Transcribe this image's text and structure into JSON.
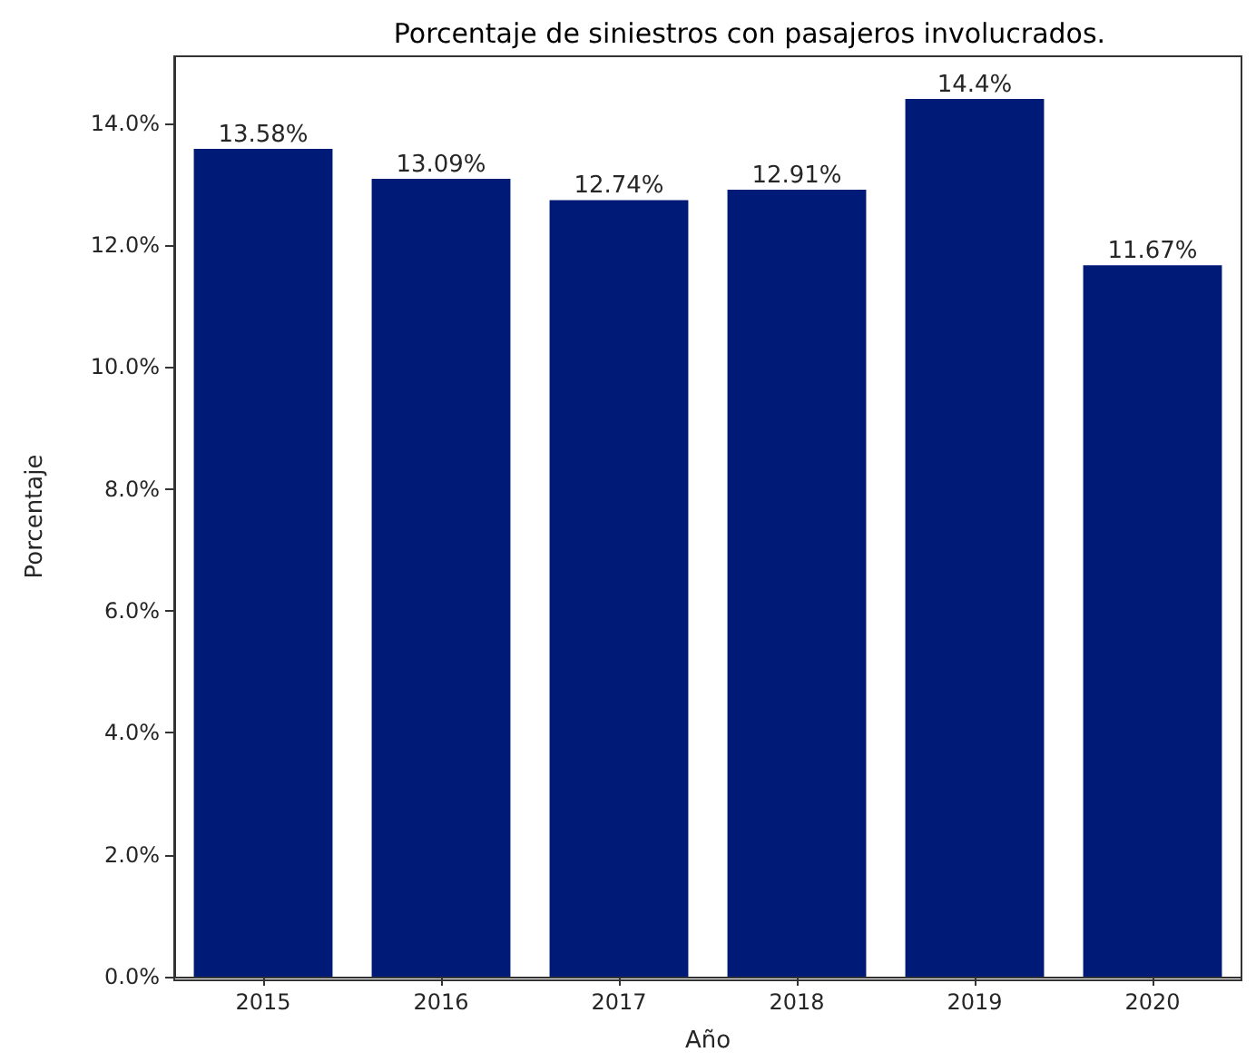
{
  "chart_data": {
    "type": "bar",
    "title": "Porcentaje de siniestros con pasajeros involucrados.",
    "xlabel": "Año",
    "ylabel": "Porcentaje",
    "categories": [
      "2015",
      "2016",
      "2017",
      "2018",
      "2019",
      "2020"
    ],
    "values": [
      13.58,
      13.09,
      12.74,
      12.91,
      14.4,
      11.67
    ],
    "value_labels": [
      "13.58%",
      "13.09%",
      "12.74%",
      "12.91%",
      "14.4%",
      "11.67%"
    ],
    "color": "#001a78",
    "ylim": [
      0,
      15.1
    ],
    "yticks": [
      {
        "value": 0,
        "label": "0.0%"
      },
      {
        "value": 2,
        "label": "2.0%"
      },
      {
        "value": 4,
        "label": "4.0%"
      },
      {
        "value": 6,
        "label": "6.0%"
      },
      {
        "value": 8,
        "label": "8.0%"
      },
      {
        "value": 10,
        "label": "10.0%"
      },
      {
        "value": 12,
        "label": "12.0%"
      },
      {
        "value": 14,
        "label": "14.0%"
      }
    ],
    "grid": false
  }
}
